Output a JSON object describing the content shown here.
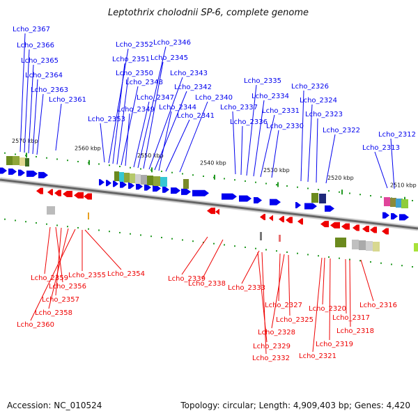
{
  "title": "Leptothrix cholodnii SP-6, complete genome",
  "footer": {
    "accession": "Accession: NC_010524",
    "summary": "Topology: circular; Length: 4,909,403 bp; Genes: 4,420"
  },
  "ticks": [
    "2570 kbp",
    "2560 kbp",
    "2550 kbp",
    "2540 kbp",
    "2530 kbp",
    "2520 kbp",
    "2510 kbp"
  ],
  "colors": {
    "forward": "#0000ee",
    "reverse": "#ee0000",
    "backbone": "#666666",
    "tick": "#229922"
  },
  "top_labels": [
    "Lcho_2367",
    "Lcho_2366",
    "Lcho_2365",
    "Lcho_2364",
    "Lcho_2363",
    "Lcho_2361",
    "Lcho_2353",
    "Lcho_2352",
    "Lcho_2351",
    "Lcho_2350",
    "Lcho_2348",
    "Lcho_2349",
    "Lcho_2347",
    "Lcho_2346",
    "Lcho_2345",
    "Lcho_2343",
    "Lcho_2342",
    "Lcho_2344",
    "Lcho_2341",
    "Lcho_2340",
    "Lcho_2337",
    "Lcho_2336",
    "Lcho_2335",
    "Lcho_2334",
    "Lcho_2331",
    "Lcho_2330",
    "Lcho_2326",
    "Lcho_2324",
    "Lcho_2323",
    "Lcho_2322",
    "Lcho_2313",
    "Lcho_2312"
  ],
  "bottom_labels": [
    "Lcho_2355",
    "Lcho_2359",
    "Lcho_2356",
    "Lcho_2357",
    "Lcho_2358",
    "Lcho_2360",
    "Lcho_2354",
    "Lcho_2339",
    "Lcho_2338",
    "Lcho_2333",
    "Lcho_2327",
    "Lcho_2328",
    "Lcho_2325",
    "Lcho_2329",
    "Lcho_2332",
    "Lcho_2320",
    "Lcho_2317",
    "Lcho_2318",
    "Lcho_2319",
    "Lcho_2321",
    "Lcho_2316"
  ]
}
